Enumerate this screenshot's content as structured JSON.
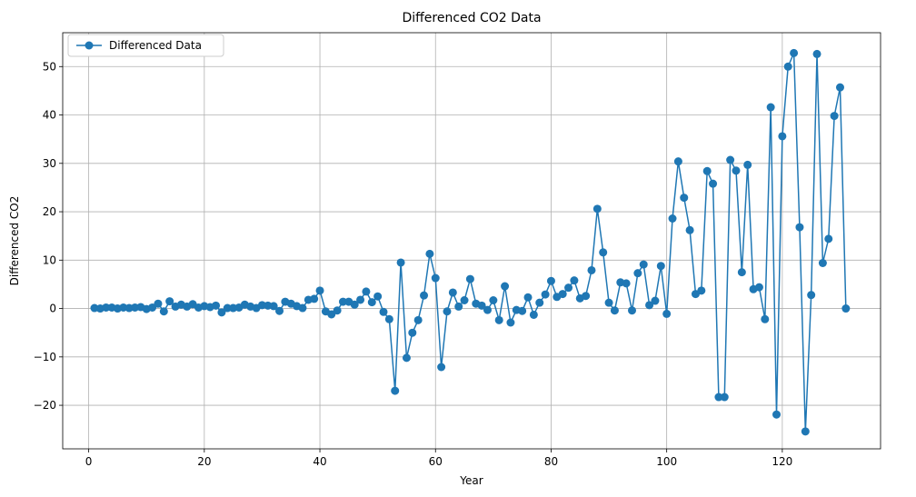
{
  "chart_data": {
    "type": "line",
    "title": "Differenced CO2 Data",
    "xlabel": "Year",
    "ylabel": "Differenced CO2",
    "xlim": [
      -4.5,
      137
    ],
    "ylim": [
      -29,
      57
    ],
    "xticks": [
      0,
      20,
      40,
      60,
      80,
      100,
      120
    ],
    "yticks": [
      -20,
      -10,
      0,
      10,
      20,
      30,
      40,
      50
    ],
    "grid": true,
    "legend_position": "top-left",
    "markers": true,
    "series": [
      {
        "name": "Differenced Data",
        "color": "#1f77b4",
        "x": [
          1,
          2,
          3,
          4,
          5,
          6,
          7,
          8,
          9,
          10,
          11,
          12,
          13,
          14,
          15,
          16,
          17,
          18,
          19,
          20,
          21,
          22,
          23,
          24,
          25,
          26,
          27,
          28,
          29,
          30,
          31,
          32,
          33,
          34,
          35,
          36,
          37,
          38,
          39,
          40,
          41,
          42,
          43,
          44,
          45,
          46,
          47,
          48,
          49,
          50,
          51,
          52,
          53,
          54,
          55,
          56,
          57,
          58,
          59,
          60,
          61,
          62,
          63,
          64,
          65,
          66,
          67,
          68,
          69,
          70,
          71,
          72,
          73,
          74,
          75,
          76,
          77,
          78,
          79,
          80,
          81,
          82,
          83,
          84,
          85,
          86,
          87,
          88,
          89,
          90,
          91,
          92,
          93,
          94,
          95,
          96,
          97,
          98,
          99,
          100,
          101,
          102,
          103,
          104,
          105,
          106,
          107,
          108,
          109,
          110,
          111,
          112,
          113,
          114,
          115,
          116,
          117,
          118,
          119,
          120,
          121,
          122,
          123,
          124,
          125,
          126,
          127,
          128,
          129,
          130,
          131
        ],
        "values": [
          0.1,
          0.0,
          0.2,
          0.2,
          0.0,
          0.2,
          0.1,
          0.2,
          0.3,
          -0.1,
          0.2,
          1.0,
          -0.6,
          1.5,
          0.4,
          0.8,
          0.4,
          0.9,
          0.2,
          0.5,
          0.3,
          0.6,
          -0.8,
          0.1,
          0.1,
          0.2,
          0.8,
          0.4,
          0.1,
          0.7,
          0.6,
          0.5,
          -0.5,
          1.4,
          1.0,
          0.5,
          0.1,
          1.8,
          2.0,
          3.7,
          -0.6,
          -1.2,
          -0.4,
          1.4,
          1.4,
          0.8,
          1.8,
          3.5,
          1.3,
          2.5,
          -0.7,
          -2.2,
          -17.0,
          9.5,
          -10.2,
          -5.0,
          -2.4,
          2.7,
          11.3,
          6.3,
          -12.1,
          -0.6,
          3.3,
          0.4,
          1.7,
          6.1,
          1.0,
          0.6,
          -0.3,
          1.7,
          -2.4,
          4.6,
          -2.9,
          -0.3,
          -0.5,
          2.3,
          -1.3,
          1.2,
          2.9,
          5.7,
          2.4,
          3.0,
          4.3,
          5.8,
          2.1,
          2.6,
          7.9,
          20.6,
          11.6,
          1.2,
          -0.4,
          5.4,
          5.2,
          -0.4,
          7.3,
          9.1,
          0.7,
          1.6,
          8.8,
          -1.1,
          18.6,
          30.4,
          22.9,
          16.2,
          3.0,
          3.7,
          28.4,
          25.8,
          -18.3,
          -18.3,
          30.7,
          28.5,
          7.5,
          29.7,
          4.0,
          4.4,
          -2.2,
          41.6,
          -21.9,
          35.6,
          50.0,
          52.8,
          16.8,
          -25.4,
          2.8,
          52.6,
          9.4,
          14.4,
          39.8,
          45.7,
          0.0
        ]
      }
    ]
  }
}
